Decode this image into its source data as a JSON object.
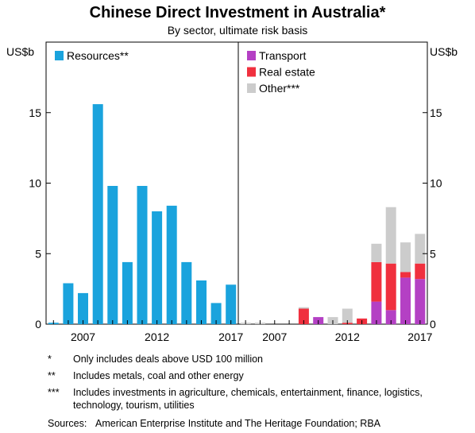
{
  "chart_data": {
    "type": "bar",
    "title": "Chinese Direct Investment in Australia*",
    "subtitle": "By sector, ultimate risk basis",
    "ylabel_left": "US$b",
    "ylabel_right": "US$b",
    "ylim": [
      0,
      20
    ],
    "yticks": [
      0,
      5,
      10,
      15
    ],
    "grid": false,
    "x": [
      2005,
      2006,
      2007,
      2008,
      2009,
      2010,
      2011,
      2012,
      2013,
      2014,
      2015,
      2016,
      2017
    ],
    "xticks": [
      "2007",
      "2012",
      "2017"
    ],
    "panels": [
      {
        "name": "left",
        "legend_position": "top-left",
        "series": [
          {
            "name": "Resources**",
            "color": "#1aa3dd",
            "values": [
              0.1,
              2.9,
              2.2,
              15.6,
              9.8,
              4.4,
              9.8,
              8.0,
              8.4,
              4.4,
              3.1,
              1.5,
              2.8
            ]
          }
        ]
      },
      {
        "name": "right",
        "legend_position": "top-left",
        "stacked": true,
        "series": [
          {
            "name": "Transport",
            "color": "#b440c4",
            "values": [
              0,
              0,
              0,
              0,
              0,
              0.5,
              0,
              0,
              0,
              1.6,
              1.0,
              3.3,
              3.2
            ]
          },
          {
            "name": "Real estate",
            "color": "#f0303e",
            "values": [
              0,
              0,
              0,
              0,
              1.1,
              0,
              0,
              0.1,
              0.4,
              2.8,
              3.3,
              0.4,
              1.1
            ]
          },
          {
            "name": "Other***",
            "color": "#cccccc",
            "values": [
              0.1,
              0.1,
              0,
              0,
              0.1,
              0,
              0.5,
              1.0,
              0,
              1.3,
              4.0,
              2.1,
              2.1
            ]
          }
        ]
      }
    ]
  },
  "footnotes": [
    {
      "mark": "*",
      "text": "Only includes deals above USD 100 million"
    },
    {
      "mark": "**",
      "text": "Includes metals, coal and other energy"
    },
    {
      "mark": "***",
      "text": "Includes investments in agriculture, chemicals, entertainment, finance, logistics, technology, tourism, utilities"
    }
  ],
  "sources": {
    "label": "Sources:",
    "text": "American Enterprise Institute and The Heritage Foundation; RBA"
  }
}
